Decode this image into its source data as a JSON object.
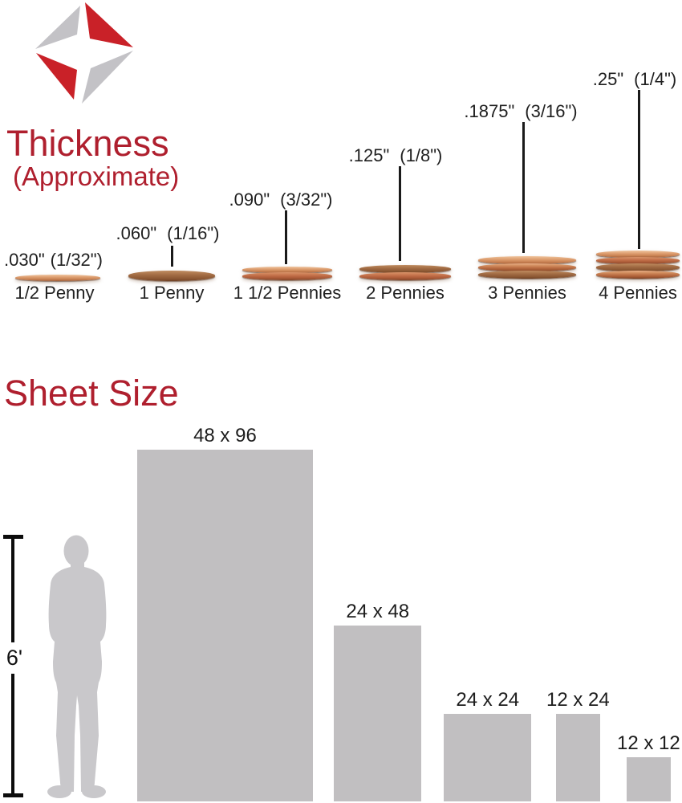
{
  "brand_logo": {
    "red": "#c92128",
    "gray": "#c3c2c6"
  },
  "colors": {
    "title_red": "#af1f2e",
    "bar_gray": "#c1bfc1",
    "silhouette_gray": "#c9c8cb"
  },
  "thickness_section": {
    "title": "Thickness",
    "subtitle": "(Approximate)",
    "items": [
      {
        "decimal": ".030\"",
        "fraction": "(1/32\")",
        "label": "1/2 Penny"
      },
      {
        "decimal": ".060\"",
        "fraction": "(1/16\")",
        "label": "1 Penny"
      },
      {
        "decimal": ".090\"",
        "fraction": "(3/32\")",
        "label": "1 1/2 Pennies"
      },
      {
        "decimal": ".125\"",
        "fraction": "(1/8\")",
        "label": "2 Pennies"
      },
      {
        "decimal": ".1875\"",
        "fraction": "(3/16\")",
        "label": "3 Pennies"
      },
      {
        "decimal": ".25\"",
        "fraction": "(1/4\")",
        "label": "4 Pennies"
      }
    ]
  },
  "sheet_section": {
    "title": "Sheet Size",
    "reference_label": "6'"
  },
  "chart_data": [
    {
      "type": "table",
      "title": "Thickness (Approximate)",
      "categories": [
        "1/2 Penny",
        "1 Penny",
        "1 1/2 Pennies",
        "2 Pennies",
        "3 Pennies",
        "4 Pennies"
      ],
      "thickness_decimal_in": [
        0.03,
        0.06,
        0.09,
        0.125,
        0.1875,
        0.25
      ],
      "thickness_fraction_in": [
        "1/32\"",
        "1/16\"",
        "3/32\"",
        "1/8\"",
        "3/16\"",
        "1/4\""
      ]
    },
    {
      "type": "bar",
      "title": "Sheet Size",
      "categories": [
        "48 x 96",
        "24 x 48",
        "24 x 24",
        "12 x 24",
        "12 x 12"
      ],
      "bar_size_in": [
        [
          48,
          96
        ],
        [
          24,
          48
        ],
        [
          24,
          24
        ],
        [
          12,
          24
        ],
        [
          12,
          12
        ]
      ],
      "reference_height_label": "6'",
      "legend_position": "none",
      "grid": false
    }
  ]
}
